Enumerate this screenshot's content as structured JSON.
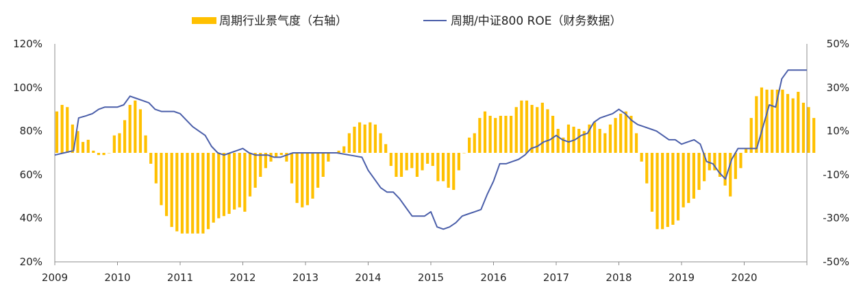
{
  "chart_data": {
    "type": "bar+line",
    "colors": {
      "bar": "#ffc000",
      "line": "#4a5ea9",
      "axis": "#8c8c8c"
    },
    "legend": {
      "bar_label": "周期行业景气度（右轴）",
      "line_label": "周期/中证800 ROE（财务数据）"
    },
    "x_labels": [
      "2009",
      "2010",
      "2011",
      "2012",
      "2013",
      "2014",
      "2015",
      "2016",
      "2017",
      "2018",
      "2019",
      "2020"
    ],
    "x_range": [
      2009,
      2021
    ],
    "left_axis": {
      "ylim": [
        20,
        120
      ],
      "ticks": [
        "20%",
        "40%",
        "60%",
        "80%",
        "100%",
        "120%"
      ],
      "tick_values": [
        20,
        40,
        60,
        80,
        100,
        120
      ]
    },
    "right_axis": {
      "ylim": [
        -50,
        50
      ],
      "ticks": [
        "-50%",
        "-30%",
        "-10%",
        "10%",
        "30%",
        "50%"
      ],
      "tick_values": [
        -50,
        -30,
        -10,
        10,
        30,
        50
      ]
    },
    "bar_series": {
      "name": "周期行业景气度（右轴）",
      "axis": "right",
      "start": 2009.0,
      "step": 0.0833,
      "values": [
        19,
        22,
        21,
        13,
        10,
        5,
        6,
        1,
        -1,
        -1,
        0,
        8,
        9,
        15,
        22,
        24,
        20,
        8,
        -5,
        -14,
        -24,
        -29,
        -34,
        -36,
        -37,
        -37,
        -37,
        -37,
        -37,
        -35,
        -32,
        -30,
        -29,
        -28,
        -26,
        -25,
        -27,
        -20,
        -16,
        -11,
        -7,
        -4,
        -2,
        -1,
        -4,
        -14,
        -23,
        -25,
        -24,
        -21,
        -16,
        -11,
        -4,
        0,
        1,
        3,
        9,
        12,
        14,
        13,
        14,
        13,
        9,
        4,
        -6,
        -11,
        -11,
        -8,
        -7,
        -11,
        -8,
        -5,
        -6,
        -13,
        -13,
        -16,
        -17,
        -8,
        0,
        7,
        9,
        16,
        19,
        17,
        16,
        17,
        17,
        17,
        21,
        24,
        24,
        22,
        21,
        23,
        20,
        17,
        11,
        7,
        13,
        12,
        11,
        10,
        13,
        14,
        11,
        9,
        13,
        16,
        18,
        19,
        17,
        9,
        -4,
        -14,
        -27,
        -35,
        -35,
        -34,
        -33,
        -31,
        -25,
        -23,
        -21,
        -17,
        -13,
        -8,
        -8,
        -11,
        -15,
        -20,
        -12,
        -7,
        2,
        16,
        26,
        30,
        29,
        29,
        29,
        29,
        27,
        25,
        28,
        23,
        21,
        16
      ]
    },
    "line_series": {
      "name": "周期/中证800 ROE（财务数据）",
      "axis": "left",
      "x": [
        2009.0,
        2009.15,
        2009.3,
        2009.38,
        2009.5,
        2009.6,
        2009.7,
        2009.8,
        2009.9,
        2010.0,
        2010.1,
        2010.2,
        2010.3,
        2010.4,
        2010.5,
        2010.6,
        2010.7,
        2010.8,
        2010.9,
        2011.0,
        2011.1,
        2011.2,
        2011.3,
        2011.4,
        2011.5,
        2011.6,
        2011.7,
        2011.8,
        2011.9,
        2012.0,
        2012.1,
        2012.2,
        2012.3,
        2012.4,
        2012.5,
        2012.6,
        2012.7,
        2012.8,
        2012.9,
        2013.0,
        2013.1,
        2013.2,
        2013.3,
        2013.5,
        2013.7,
        2013.9,
        2014.0,
        2014.2,
        2014.3,
        2014.4,
        2014.5,
        2014.6,
        2014.7,
        2014.8,
        2014.9,
        2015.0,
        2015.1,
        2015.2,
        2015.3,
        2015.4,
        2015.5,
        2015.6,
        2015.7,
        2015.8,
        2015.9,
        2016.0,
        2016.1,
        2016.2,
        2016.3,
        2016.4,
        2016.5,
        2016.6,
        2016.7,
        2016.8,
        2016.9,
        2017.0,
        2017.1,
        2017.2,
        2017.3,
        2017.4,
        2017.5,
        2017.6,
        2017.7,
        2017.8,
        2017.9,
        2018.0,
        2018.1,
        2018.2,
        2018.3,
        2018.4,
        2018.5,
        2018.6,
        2018.7,
        2018.8,
        2018.9,
        2019.0,
        2019.1,
        2019.2,
        2019.3,
        2019.4,
        2019.5,
        2019.6,
        2019.7,
        2019.8,
        2019.9,
        2020.0,
        2020.1,
        2020.2,
        2020.3,
        2020.4,
        2020.5,
        2020.6,
        2020.7,
        2020.8,
        2020.9,
        2021.0
      ],
      "values": [
        69,
        70,
        71,
        86,
        87,
        88,
        90,
        91,
        91,
        91,
        92,
        96,
        95,
        94,
        93,
        90,
        89,
        89,
        89,
        88,
        85,
        82,
        80,
        78,
        73,
        70,
        69,
        70,
        71,
        72,
        70,
        69,
        69,
        69,
        68,
        68,
        69,
        70,
        70,
        70,
        70,
        70,
        70,
        70,
        69,
        68,
        62,
        54,
        52,
        52,
        49,
        45,
        41,
        41,
        41,
        43,
        36,
        35,
        36,
        38,
        41,
        42,
        43,
        44,
        51,
        57,
        65,
        65,
        66,
        67,
        69,
        72,
        73,
        75,
        76,
        78,
        76,
        75,
        76,
        78,
        79,
        84,
        86,
        87,
        88,
        90,
        88,
        85,
        83,
        82,
        81,
        80,
        78,
        76,
        76,
        74,
        75,
        76,
        74,
        66,
        65,
        61,
        58,
        67,
        72,
        72,
        72,
        72,
        82,
        92,
        91,
        104,
        108,
        108,
        108,
        108
      ]
    }
  }
}
